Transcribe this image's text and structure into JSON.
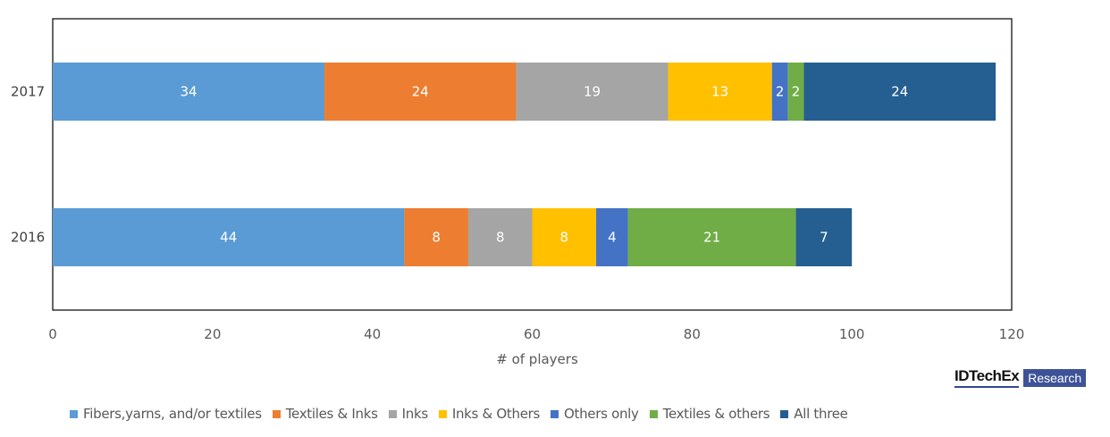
{
  "chart_data": {
    "type": "bar",
    "orientation": "horizontal",
    "stacked": true,
    "title": "",
    "xlabel": "# of players",
    "ylabel": "",
    "xlim": [
      0,
      120
    ],
    "xticks": [
      0,
      20,
      40,
      60,
      80,
      100,
      120
    ],
    "grid": false,
    "legend_position": "bottom",
    "categories": [
      "2017",
      "2016"
    ],
    "series": [
      {
        "name": "Fibers,yarns, and/or textiles",
        "color": "#5b9bd5",
        "values": [
          34,
          44
        ]
      },
      {
        "name": "Textiles & Inks",
        "color": "#ed7d31",
        "values": [
          24,
          8
        ]
      },
      {
        "name": "Inks",
        "color": "#a5a5a5",
        "values": [
          19,
          8
        ]
      },
      {
        "name": "Inks & Others",
        "color": "#ffc000",
        "values": [
          13,
          8
        ]
      },
      {
        "name": "Others only",
        "color": "#4472c4",
        "values": [
          2,
          4
        ]
      },
      {
        "name": "Textiles & others",
        "color": "#70ad47",
        "values": [
          2,
          21
        ]
      },
      {
        "name": "All three",
        "color": "#255e91",
        "values": [
          24,
          7
        ]
      }
    ]
  },
  "branding": {
    "logo_main": "IDTechEx",
    "logo_badge": "Research"
  }
}
